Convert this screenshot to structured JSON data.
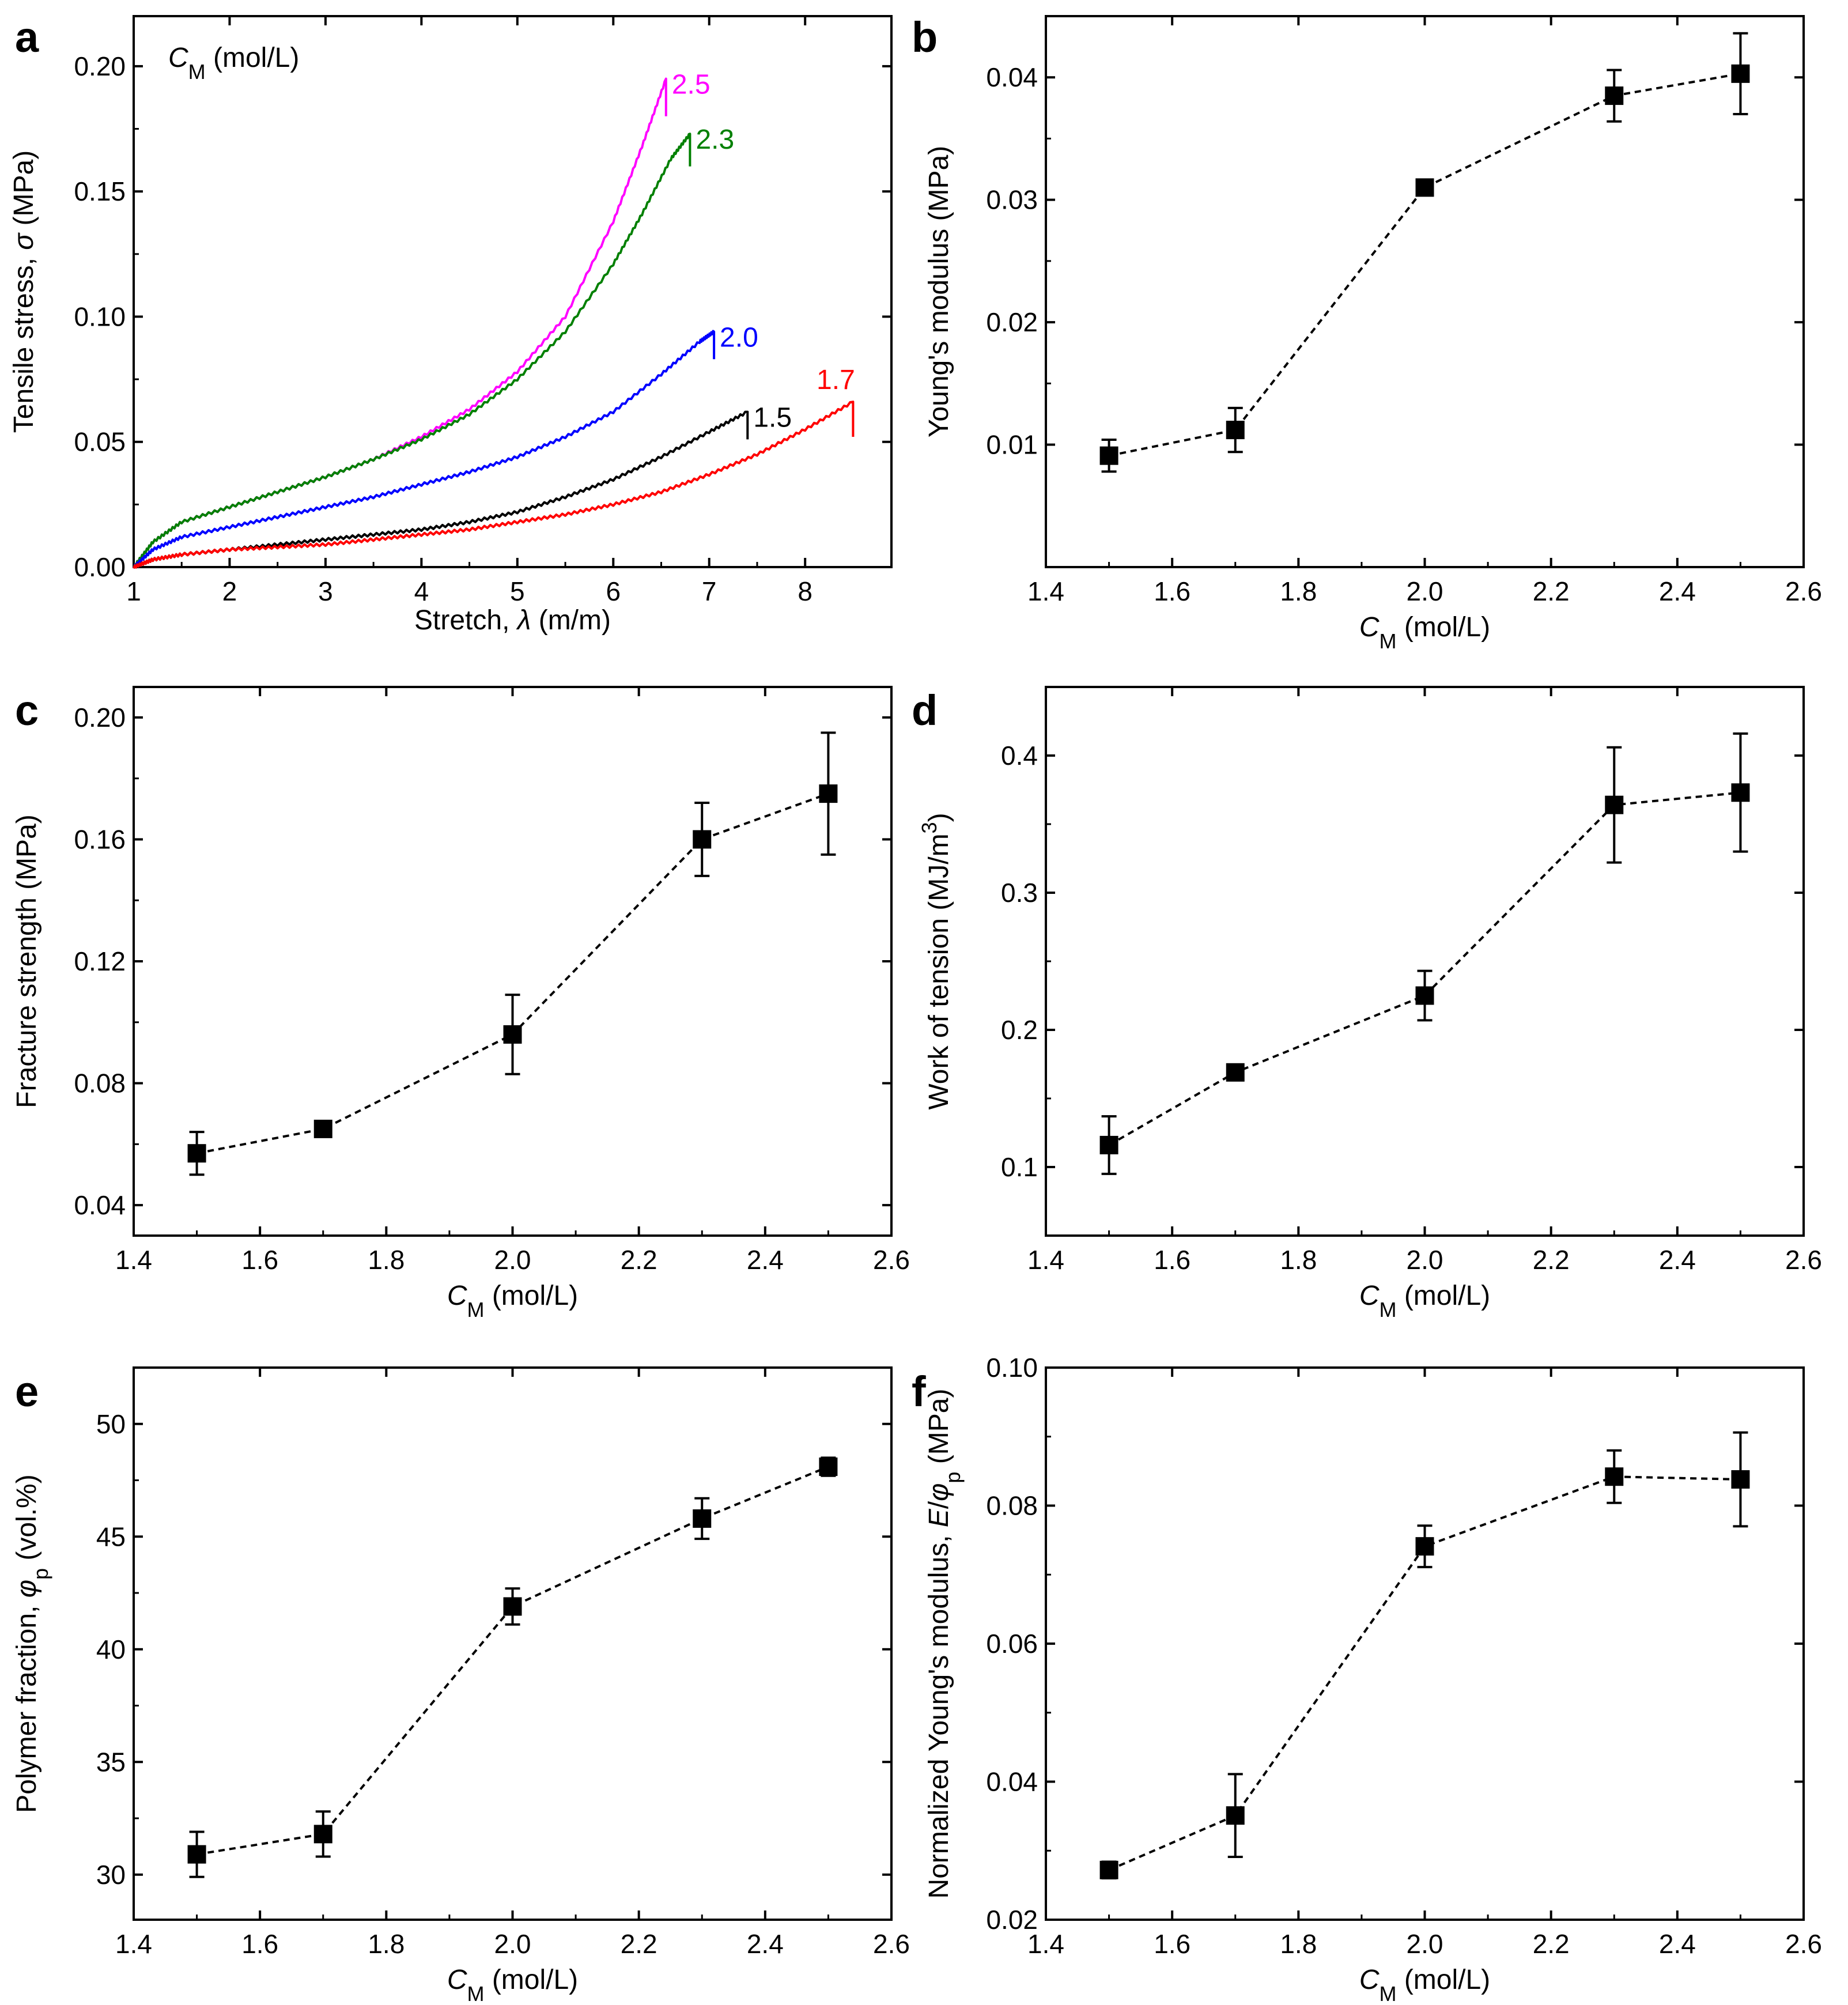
{
  "figure_title": "",
  "chart_data": [
    {
      "panel": "a",
      "type": "line",
      "legend_title": "C_M (mol/L)",
      "xlabel": "Stretch, λ (m/m)",
      "ylabel": "Tensile stress, σ (MPa)",
      "xlim": [
        1,
        8.9
      ],
      "ylim": [
        0,
        0.22
      ],
      "xticks": [
        1,
        2,
        3,
        4,
        5,
        6,
        7,
        8
      ],
      "yticks": [
        0.0,
        0.05,
        0.1,
        0.15,
        0.2
      ],
      "ytick_labels": [
        "0.00",
        "0.05",
        "0.10",
        "0.15",
        "0.20"
      ],
      "series": [
        {
          "name": "2.5",
          "color": "#ff00ff",
          "x": [
            1.0,
            1.2,
            1.5,
            2.0,
            2.5,
            3.0,
            3.5,
            4.0,
            4.5,
            5.0,
            5.5,
            6.0,
            6.3,
            6.55
          ],
          "y": [
            0.0,
            0.01,
            0.018,
            0.024,
            0.03,
            0.036,
            0.043,
            0.052,
            0.063,
            0.078,
            0.1,
            0.138,
            0.168,
            0.195
          ],
          "break_to": 0.18
        },
        {
          "name": "2.3",
          "color": "#008000",
          "x": [
            1.0,
            1.2,
            1.5,
            2.0,
            2.5,
            3.0,
            3.5,
            4.0,
            4.5,
            5.0,
            5.5,
            6.0,
            6.3,
            6.6,
            6.8
          ],
          "y": [
            0.0,
            0.01,
            0.018,
            0.024,
            0.03,
            0.036,
            0.043,
            0.051,
            0.061,
            0.075,
            0.094,
            0.121,
            0.141,
            0.163,
            0.173
          ],
          "break_to": 0.16
        },
        {
          "name": "2.0",
          "color": "#0000ff",
          "x": [
            1.0,
            1.2,
            1.5,
            2.0,
            2.5,
            3.0,
            3.5,
            4.0,
            4.5,
            5.0,
            5.5,
            6.0,
            6.5,
            6.9,
            7.05
          ],
          "y": [
            0.0,
            0.007,
            0.012,
            0.016,
            0.02,
            0.024,
            0.028,
            0.033,
            0.038,
            0.044,
            0.052,
            0.062,
            0.077,
            0.09,
            0.094
          ],
          "break_to": 0.083
        },
        {
          "name": "1.5",
          "color": "#000000",
          "x": [
            1.0,
            1.2,
            1.5,
            2.0,
            2.5,
            3.0,
            3.5,
            4.0,
            4.5,
            5.0,
            5.5,
            6.0,
            6.5,
            7.0,
            7.4
          ],
          "y": [
            0.0,
            0.003,
            0.005,
            0.007,
            0.009,
            0.011,
            0.013,
            0.015,
            0.018,
            0.022,
            0.028,
            0.035,
            0.044,
            0.054,
            0.062
          ],
          "break_to": 0.051
        },
        {
          "name": "1.7",
          "color": "#ff0000",
          "x": [
            1.0,
            1.2,
            1.5,
            2.0,
            2.5,
            3.0,
            3.5,
            4.0,
            4.5,
            5.0,
            5.5,
            6.0,
            6.5,
            7.0,
            7.5,
            8.0,
            8.5
          ],
          "y": [
            0.0,
            0.003,
            0.005,
            0.007,
            0.008,
            0.009,
            0.011,
            0.013,
            0.015,
            0.018,
            0.021,
            0.025,
            0.03,
            0.037,
            0.045,
            0.055,
            0.066
          ],
          "break_to": 0.052
        }
      ]
    },
    {
      "panel": "b",
      "type": "scatter",
      "xlabel": "C_M (mol/L)",
      "ylabel": "Young's  modulus (MPa)",
      "xlim": [
        1.4,
        2.6
      ],
      "ylim": [
        0.0,
        0.045
      ],
      "xticks": [
        1.4,
        1.6,
        1.8,
        2.0,
        2.2,
        2.4,
        2.6
      ],
      "xtick_labels": [
        "1.4",
        "1.6",
        "1.8",
        "2.0",
        "2.2",
        "2.4",
        "2.6"
      ],
      "yticks": [
        0.01,
        0.02,
        0.03,
        0.04
      ],
      "ytick_labels": [
        "0.01",
        "0.02",
        "0.03",
        "0.04"
      ],
      "x": [
        1.5,
        1.7,
        2.0,
        2.3,
        2.5
      ],
      "y": [
        0.0091,
        0.0112,
        0.031,
        0.0385,
        0.0403
      ],
      "yerr": [
        0.0013,
        0.0018,
        0.0005,
        0.0021,
        0.0033
      ]
    },
    {
      "panel": "c",
      "type": "scatter",
      "xlabel": "C_M (mol/L)",
      "ylabel": "Fracture strength (MPa)",
      "xlim": [
        1.4,
        2.6
      ],
      "ylim": [
        0.03,
        0.21
      ],
      "xticks": [
        1.4,
        1.6,
        1.8,
        2.0,
        2.2,
        2.4,
        2.6
      ],
      "xtick_labels": [
        "1.4",
        "1.6",
        "1.8",
        "2.0",
        "2.2",
        "2.4",
        "2.6"
      ],
      "yticks": [
        0.04,
        0.08,
        0.12,
        0.16,
        0.2
      ],
      "ytick_labels": [
        "0.04",
        "0.08",
        "0.12",
        "0.16",
        "0.20"
      ],
      "x": [
        1.5,
        1.7,
        2.0,
        2.3,
        2.5
      ],
      "y": [
        0.057,
        0.065,
        0.096,
        0.16,
        0.175
      ],
      "yerr": [
        0.007,
        0.001,
        0.013,
        0.012,
        0.02
      ]
    },
    {
      "panel": "d",
      "type": "scatter",
      "xlabel": "C_M (mol/L)",
      "ylabel": "Work of tension (MJ/m3)",
      "xlim": [
        1.4,
        2.6
      ],
      "ylim": [
        0.05,
        0.45
      ],
      "xticks": [
        1.4,
        1.6,
        1.8,
        2.0,
        2.2,
        2.4,
        2.6
      ],
      "xtick_labels": [
        "1.4",
        "1.6",
        "1.8",
        "2.0",
        "2.2",
        "2.4",
        "2.6"
      ],
      "yticks": [
        0.1,
        0.2,
        0.3,
        0.4
      ],
      "ytick_labels": [
        "0.1",
        "0.2",
        "0.3",
        "0.4"
      ],
      "x": [
        1.5,
        1.7,
        2.0,
        2.3,
        2.5
      ],
      "y": [
        0.116,
        0.169,
        0.225,
        0.364,
        0.373
      ],
      "yerr": [
        0.021,
        0.004,
        0.018,
        0.042,
        0.043
      ]
    },
    {
      "panel": "e",
      "type": "scatter",
      "xlabel": "C_M (mol/L)",
      "ylabel": "Polymer fraction, φp (vol.%)",
      "xlim": [
        1.4,
        2.6
      ],
      "ylim": [
        28.0,
        52.5
      ],
      "xticks": [
        1.4,
        1.6,
        1.8,
        2.0,
        2.2,
        2.4,
        2.6
      ],
      "xtick_labels": [
        "1.4",
        "1.6",
        "1.8",
        "2.0",
        "2.2",
        "2.4",
        "2.6"
      ],
      "yticks": [
        30,
        35,
        40,
        45,
        50
      ],
      "ytick_labels": [
        "30",
        "35",
        "40",
        "45",
        "50"
      ],
      "x": [
        1.5,
        1.7,
        2.0,
        2.3,
        2.5
      ],
      "y": [
        30.9,
        31.8,
        41.9,
        45.8,
        48.1
      ],
      "yerr": [
        1.0,
        1.0,
        0.8,
        0.9,
        0.4
      ]
    },
    {
      "panel": "f",
      "type": "scatter",
      "xlabel": "C_M (mol/L)",
      "ylabel": "Normalized Young's modulus, E/φp (MPa)",
      "xlim": [
        1.4,
        2.6
      ],
      "ylim": [
        0.02,
        0.1
      ],
      "xticks": [
        1.4,
        1.6,
        1.8,
        2.0,
        2.2,
        2.4,
        2.6
      ],
      "xtick_labels": [
        "1.4",
        "1.6",
        "1.8",
        "2.0",
        "2.2",
        "2.4",
        "2.6"
      ],
      "yticks": [
        0.02,
        0.04,
        0.06,
        0.08,
        0.1
      ],
      "ytick_labels": [
        "0.02",
        "0.04",
        "0.06",
        "0.08",
        "0.10"
      ],
      "x": [
        1.5,
        1.7,
        2.0,
        2.3,
        2.5
      ],
      "y": [
        0.0272,
        0.0351,
        0.0741,
        0.0842,
        0.0838
      ],
      "yerr": [
        0.0012,
        0.006,
        0.003,
        0.0038,
        0.0068
      ]
    }
  ],
  "panel_letters": [
    "a",
    "b",
    "c",
    "d",
    "e",
    "f"
  ]
}
